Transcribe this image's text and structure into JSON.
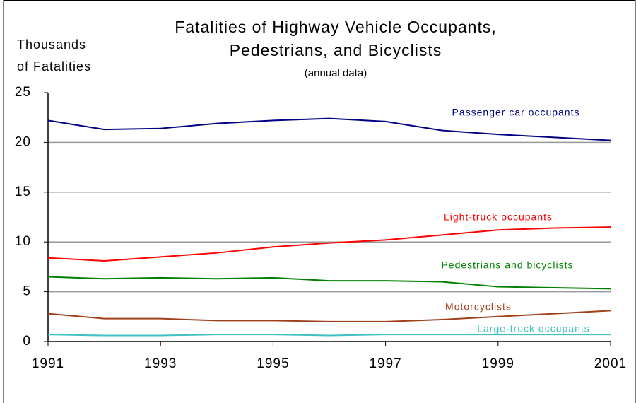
{
  "chart_data": {
    "type": "line",
    "title": [
      "Fatalities of Highway Vehicle Occupants,",
      "Pedestrians, and Bicyclists"
    ],
    "subtitle": "(annual data)",
    "y_label": [
      "Thousands",
      "of Fatalities"
    ],
    "x": [
      1991,
      1992,
      1993,
      1994,
      1995,
      1996,
      1997,
      1998,
      1999,
      2000,
      2001
    ],
    "xlim": [
      1991,
      2001
    ],
    "xticks": [
      1991,
      1993,
      1995,
      1997,
      1999,
      2001
    ],
    "ylim": [
      0,
      25
    ],
    "yticks": [
      0,
      5,
      10,
      15,
      20,
      25
    ],
    "grid": true,
    "series": [
      {
        "name": "Passenger car occupants",
        "color": "#000080",
        "values": [
          22.2,
          21.3,
          21.4,
          21.9,
          22.2,
          22.4,
          22.1,
          21.2,
          20.8,
          20.5,
          20.2
        ]
      },
      {
        "name": "Light-truck occupants",
        "color": "#ff0000",
        "values": [
          8.4,
          8.1,
          8.5,
          8.9,
          9.5,
          9.9,
          10.2,
          10.7,
          11.2,
          11.4,
          11.5
        ]
      },
      {
        "name": "Pedestrians and bicyclists",
        "color": "#008000",
        "values": [
          6.5,
          6.3,
          6.4,
          6.3,
          6.4,
          6.1,
          6.1,
          6.0,
          5.5,
          5.4,
          5.3
        ]
      },
      {
        "name": "Motorcyclists",
        "color": "#a0401a",
        "values": [
          2.8,
          2.3,
          2.3,
          2.1,
          2.1,
          2.0,
          2.0,
          2.2,
          2.5,
          2.8,
          3.1
        ]
      },
      {
        "name": "Large-truck occupants",
        "color": "#40c0c0",
        "values": [
          0.7,
          0.6,
          0.6,
          0.7,
          0.7,
          0.6,
          0.7,
          0.7,
          0.7,
          0.7,
          0.7
        ]
      }
    ]
  }
}
